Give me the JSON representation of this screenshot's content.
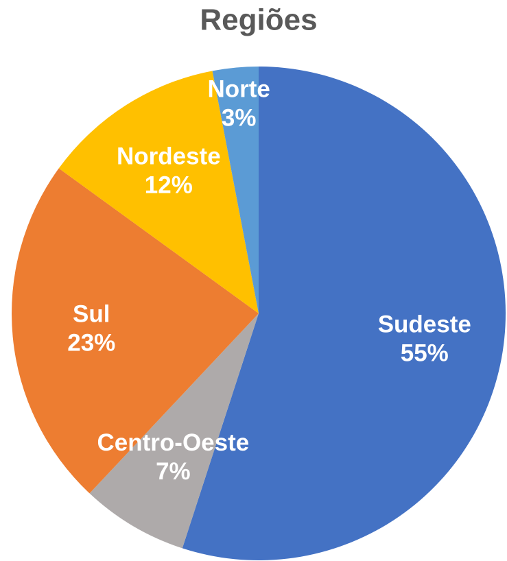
{
  "chart_data": {
    "type": "pie",
    "title": "Regiões",
    "categories": [
      "Sudeste",
      "Centro-Oeste",
      "Sul",
      "Nordeste",
      "Norte"
    ],
    "values": [
      55,
      7,
      23,
      12,
      3
    ],
    "value_labels": [
      "55%",
      "7%",
      "23%",
      "12%",
      "3%"
    ],
    "colors": [
      "#4472c4",
      "#aeaaaa",
      "#ed7d31",
      "#ffc000",
      "#5b9bd5"
    ]
  }
}
